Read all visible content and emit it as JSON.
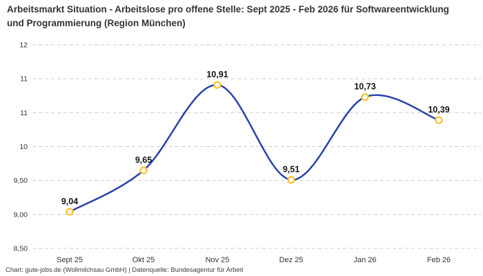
{
  "header": {
    "title": "Arbeitsmarkt Situation - Arbeitslose pro offene Stelle: Sept 2025 - Feb 2026 für Softwareentwicklung und Programmierung (Region München)"
  },
  "footer": {
    "text": "Chart: gute-jobs.de (Wollmilchsau GmbH) | Datenquelle: Bundesagentur für Arbeit"
  },
  "chart_data": {
    "type": "line",
    "title": "Arbeitslose pro offene Stelle (Region München)",
    "categories": [
      "Sept 25",
      "Okt 25",
      "Nov 25",
      "Dez 25",
      "Jan 26",
      "Feb 26"
    ],
    "values": [
      9.04,
      9.65,
      10.91,
      9.51,
      10.73,
      10.39
    ],
    "point_labels": [
      "9,04",
      "9,65",
      "10,91",
      "9,51",
      "10,73",
      "10,39"
    ],
    "xlabel": "",
    "ylabel": "",
    "legend": "none",
    "grid": "dashed-horizontal",
    "y_axis": {
      "range": [
        8.5,
        11.5
      ],
      "tick_values": [
        8.5,
        9.0,
        9.5,
        10.0,
        10.5,
        11.0,
        11.5
      ],
      "tick_labels": [
        "8,50",
        "9,00",
        "9,50",
        "10",
        "11",
        "11",
        "12"
      ]
    },
    "curve": "smooth-spline",
    "colors": {
      "line": "#2643a9",
      "marker_stroke": "#fcc133",
      "marker_fill": "#ffffff",
      "grid": "#cbcbcb",
      "point_label": "#141414",
      "axis_text": "#333333",
      "title_text": "#333333",
      "footer_text": "#3c3c3c",
      "background": "#ffffff"
    }
  }
}
